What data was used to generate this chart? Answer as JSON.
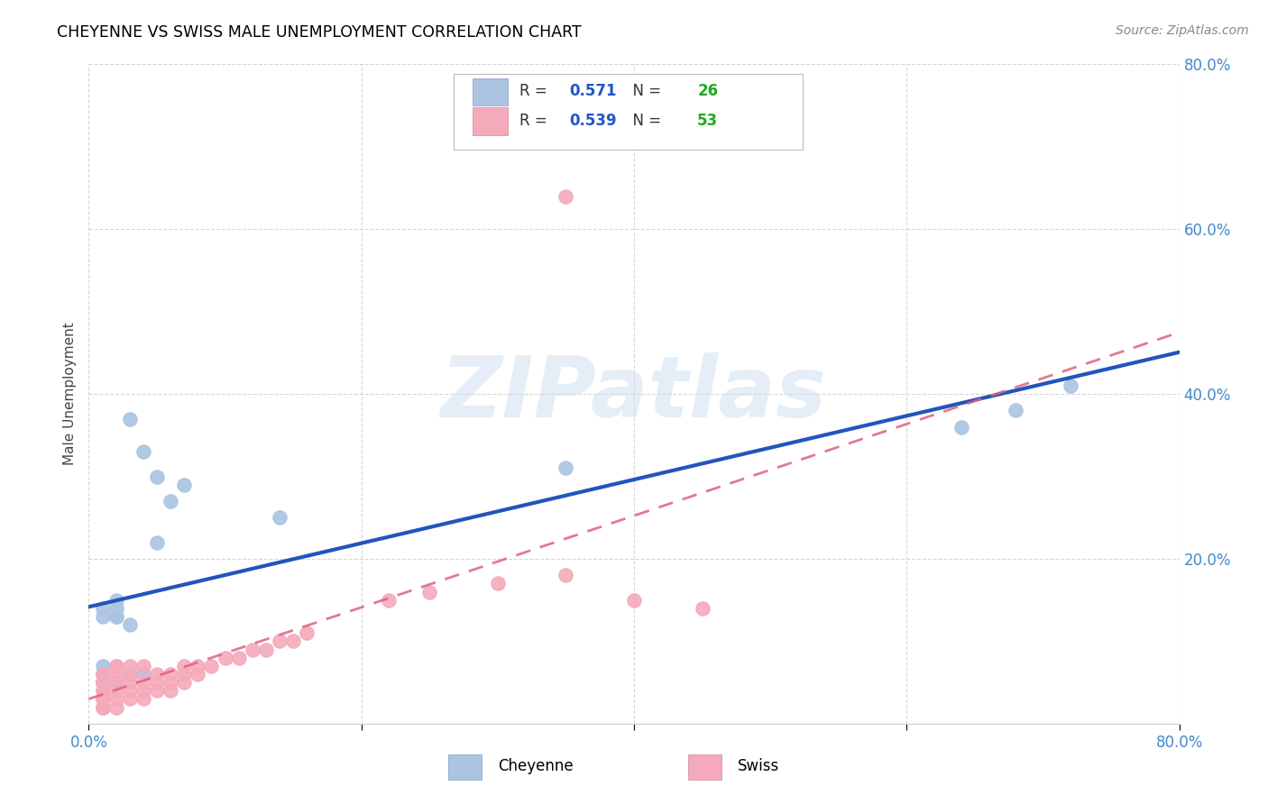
{
  "title": "CHEYENNE VS SWISS MALE UNEMPLOYMENT CORRELATION CHART",
  "source": "Source: ZipAtlas.com",
  "ylabel": "Male Unemployment",
  "xlim": [
    0.0,
    0.8
  ],
  "ylim": [
    0.0,
    0.8
  ],
  "xticks": [
    0.0,
    0.2,
    0.4,
    0.6,
    0.8
  ],
  "yticks": [
    0.0,
    0.2,
    0.4,
    0.6,
    0.8
  ],
  "cheyenne_color": "#aac4e2",
  "swiss_color": "#f4aabb",
  "cheyenne_line_color": "#2255bb",
  "swiss_line_color": "#e06080",
  "cheyenne_R": 0.571,
  "cheyenne_N": 26,
  "swiss_R": 0.539,
  "swiss_N": 53,
  "legend_R_color": "#2255cc",
  "legend_N_color": "#22aa22",
  "background_color": "#ffffff",
  "grid_color": "#cccccc",
  "cheyenne_x": [
    0.02,
    0.04,
    0.05,
    0.07,
    0.06,
    0.03,
    0.05,
    0.02,
    0.03,
    0.04,
    0.03,
    0.01,
    0.02,
    0.02,
    0.01,
    0.01,
    0.35,
    0.64,
    0.72,
    0.68,
    0.14,
    0.02,
    0.01,
    0.01,
    0.01,
    0.01
  ],
  "cheyenne_y": [
    0.15,
    0.33,
    0.3,
    0.29,
    0.27,
    0.37,
    0.22,
    0.13,
    0.12,
    0.06,
    0.06,
    0.07,
    0.05,
    0.13,
    0.05,
    0.05,
    0.31,
    0.36,
    0.41,
    0.38,
    0.25,
    0.14,
    0.05,
    0.06,
    0.14,
    0.13
  ],
  "swiss_x": [
    0.01,
    0.01,
    0.01,
    0.01,
    0.01,
    0.01,
    0.01,
    0.01,
    0.01,
    0.01,
    0.01,
    0.02,
    0.02,
    0.02,
    0.02,
    0.02,
    0.02,
    0.02,
    0.03,
    0.03,
    0.03,
    0.03,
    0.03,
    0.04,
    0.04,
    0.04,
    0.04,
    0.05,
    0.05,
    0.05,
    0.06,
    0.06,
    0.06,
    0.07,
    0.07,
    0.07,
    0.08,
    0.08,
    0.09,
    0.1,
    0.11,
    0.12,
    0.13,
    0.14,
    0.15,
    0.16,
    0.22,
    0.25,
    0.3,
    0.35,
    0.4,
    0.45,
    0.35
  ],
  "swiss_y": [
    0.02,
    0.02,
    0.03,
    0.03,
    0.03,
    0.04,
    0.04,
    0.05,
    0.05,
    0.06,
    0.06,
    0.02,
    0.03,
    0.04,
    0.05,
    0.06,
    0.07,
    0.07,
    0.03,
    0.04,
    0.05,
    0.06,
    0.07,
    0.03,
    0.04,
    0.05,
    0.07,
    0.04,
    0.05,
    0.06,
    0.04,
    0.05,
    0.06,
    0.05,
    0.06,
    0.07,
    0.06,
    0.07,
    0.07,
    0.08,
    0.08,
    0.09,
    0.09,
    0.1,
    0.1,
    0.11,
    0.15,
    0.16,
    0.17,
    0.18,
    0.15,
    0.14,
    0.64
  ]
}
